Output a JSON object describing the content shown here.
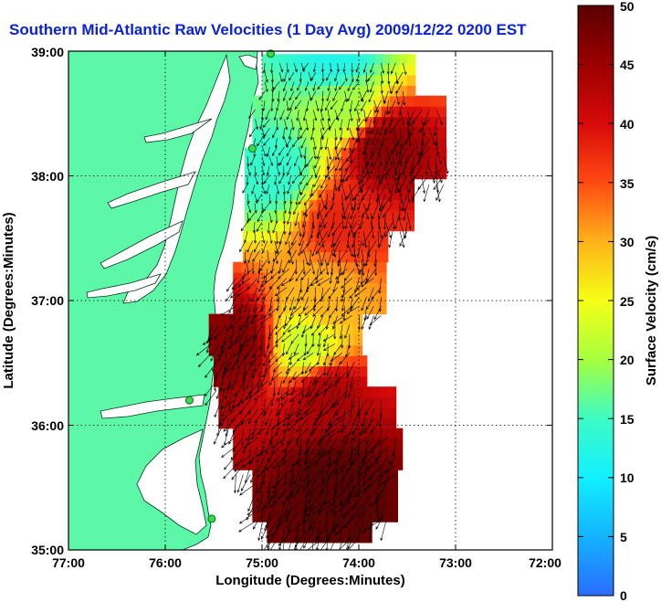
{
  "title": "Southern Mid-Atlantic Raw Velocities (1 Day Avg) 2009/12/22 0200 EST",
  "chart_data": {
    "type": "heatmap",
    "title": "Southern Mid-Atlantic Raw Velocities (1 Day Avg) 2009/12/22 0200 EST",
    "xlabel": "Longitude (Degrees:Minutes)",
    "ylabel": "Latitude (Degrees:Minutes)",
    "x_ticks": [
      "77:00",
      "76:00",
      "75:00",
      "74:00",
      "73:00",
      "72:00"
    ],
    "y_ticks": [
      "39:00",
      "38:00",
      "37:00",
      "36:00",
      "35:00"
    ],
    "xlim": [
      -77,
      -72
    ],
    "ylim": [
      35,
      39
    ],
    "grid": true,
    "colorbar": {
      "label": "Surface Velocity (cm/s)",
      "range": [
        0,
        50
      ],
      "ticks": [
        "50",
        "45",
        "40",
        "35",
        "30",
        "25",
        "20",
        "15",
        "10",
        "5",
        "0"
      ]
    },
    "speed_field": [
      {
        "lat": 38.9,
        "lon": -74.3,
        "speed": 12
      },
      {
        "lat": 38.5,
        "lon": -74.2,
        "speed": 20
      },
      {
        "lat": 38.2,
        "lon": -73.8,
        "speed": 46
      },
      {
        "lat": 38.0,
        "lon": -74.9,
        "speed": 14
      },
      {
        "lat": 37.6,
        "lon": -74.2,
        "speed": 38
      },
      {
        "lat": 37.0,
        "lon": -74.4,
        "speed": 30
      },
      {
        "lat": 36.6,
        "lon": -74.6,
        "speed": 22
      },
      {
        "lat": 36.2,
        "lon": -74.4,
        "speed": 44
      },
      {
        "lat": 35.5,
        "lon": -74.3,
        "speed": 50
      },
      {
        "lat": 36.6,
        "lon": -75.3,
        "speed": 47
      }
    ],
    "stations": [
      {
        "lat": 38.98,
        "lon": -74.91
      },
      {
        "lat": 38.22,
        "lon": -75.1
      },
      {
        "lat": 36.2,
        "lon": -75.75
      },
      {
        "lat": 35.25,
        "lon": -75.52
      }
    ]
  },
  "colors": {
    "land": "#5cf8a8",
    "title": "#0a22d8",
    "station": "#39d94b",
    "colormap": [
      "#2b6cff",
      "#13b3ff",
      "#12f0ff",
      "#3dfbc3",
      "#a6ff3f",
      "#f6ff15",
      "#ffb21a",
      "#ff4a12",
      "#d80a0a",
      "#9c0000",
      "#5a0000"
    ]
  }
}
